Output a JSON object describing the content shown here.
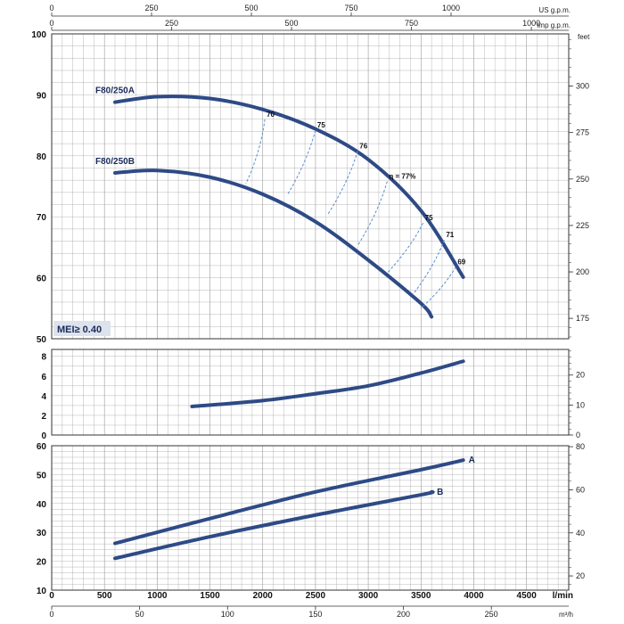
{
  "colors": {
    "curve": "#2e4a86",
    "efficiency": "#5b8fd1",
    "grid": "#9a9a9a",
    "mei_bg": "#dde3ec"
  },
  "top_axes": {
    "us_gpm": {
      "ticks": [
        "0",
        "250",
        "500",
        "750",
        "1000"
      ],
      "unit": "US g.p.m."
    },
    "imp_gpm": {
      "ticks": [
        "0",
        "250",
        "500",
        "750",
        "1000"
      ],
      "unit": "Imp g.p.m."
    }
  },
  "bottom_axes": {
    "l_min": {
      "ticks": [
        "0",
        "500",
        "1000",
        "1500",
        "2000",
        "2500",
        "3000",
        "3500",
        "4000",
        "4500"
      ],
      "unit": "l/min"
    },
    "m3h": {
      "ticks": [
        "0",
        "50",
        "100",
        "150",
        "200",
        "250"
      ],
      "unit": "m³/h"
    }
  },
  "mei_label": "MEI≥ 0.40",
  "chart_data": [
    {
      "type": "line",
      "panel": "head",
      "x_unit": "l/min",
      "xlim": [
        0,
        4900
      ],
      "ylim": [
        50,
        100
      ],
      "y_ticks": [
        "50",
        "60",
        "70",
        "80",
        "90",
        "100"
      ],
      "right_axis": {
        "unit": "feet",
        "ticks": [
          "175",
          "200",
          "225",
          "250",
          "275",
          "300"
        ],
        "values": [
          175,
          200,
          225,
          250,
          275,
          300
        ]
      },
      "series": [
        {
          "name": "F80/250A",
          "x": [
            600,
            1000,
            1500,
            2000,
            2500,
            3000,
            3500,
            3900
          ],
          "y": [
            88.8,
            89.7,
            89.4,
            87.6,
            84.4,
            79.4,
            71.0,
            60.1
          ]
        },
        {
          "name": "F80/250B",
          "x": [
            600,
            1000,
            1500,
            2000,
            2500,
            3000,
            3500,
            3600
          ],
          "y": [
            77.2,
            77.6,
            76.5,
            73.7,
            69.2,
            62.9,
            55.8,
            53.6
          ]
        }
      ],
      "efficiency_lines": [
        {
          "label": "70",
          "x": [
            2020,
            1840
          ],
          "y": [
            86.0,
            75.4
          ]
        },
        {
          "label": "75",
          "x": [
            2500,
            2230
          ],
          "y": [
            84.2,
            73.5
          ]
        },
        {
          "label": "76",
          "x": [
            2900,
            2620
          ],
          "y": [
            80.8,
            70.5
          ]
        },
        {
          "label": "η = 77%",
          "x": [
            3180,
            2900
          ],
          "y": [
            75.8,
            65.3
          ]
        },
        {
          "label": "75",
          "x": [
            3520,
            3180
          ],
          "y": [
            69.0,
            60.8
          ]
        },
        {
          "label": "71",
          "x": [
            3720,
            3420
          ],
          "y": [
            66.2,
            57.2
          ]
        },
        {
          "label": "69",
          "x": [
            3830,
            3500
          ],
          "y": [
            61.8,
            55.0
          ]
        }
      ]
    },
    {
      "type": "line",
      "panel": "npsh",
      "x_unit": "l/min",
      "xlim": [
        0,
        4900
      ],
      "ylim": [
        0,
        8.7
      ],
      "y_ticks": [
        "0",
        "2",
        "4",
        "6",
        "8"
      ],
      "right_axis": {
        "unit": "",
        "ticks": [
          "0",
          "10",
          "20"
        ],
        "values": [
          0,
          10,
          20
        ]
      },
      "series": [
        {
          "x": [
            1330,
            2000,
            2500,
            3000,
            3500,
            3900
          ],
          "y": [
            2.9,
            3.5,
            4.2,
            5.0,
            6.3,
            7.5
          ]
        }
      ]
    },
    {
      "type": "line",
      "panel": "power",
      "x_unit": "l/min",
      "xlim": [
        0,
        4900
      ],
      "ylim": [
        10,
        60
      ],
      "y_ticks": [
        "10",
        "20",
        "30",
        "40",
        "50",
        "60"
      ],
      "right_axis": {
        "unit": "",
        "ticks": [
          "20",
          "40",
          "60",
          "80"
        ],
        "values": [
          20,
          40,
          60,
          80
        ]
      },
      "series": [
        {
          "name": "A",
          "x": [
            600,
            1500,
            2500,
            3500,
            3900
          ],
          "y": [
            26.2,
            34.8,
            44.0,
            51.7,
            55.0
          ]
        },
        {
          "name": "B",
          "x": [
            600,
            1500,
            2500,
            3500,
            3600
          ],
          "y": [
            21.0,
            28.5,
            36.0,
            43.0,
            44.0
          ]
        }
      ]
    }
  ]
}
